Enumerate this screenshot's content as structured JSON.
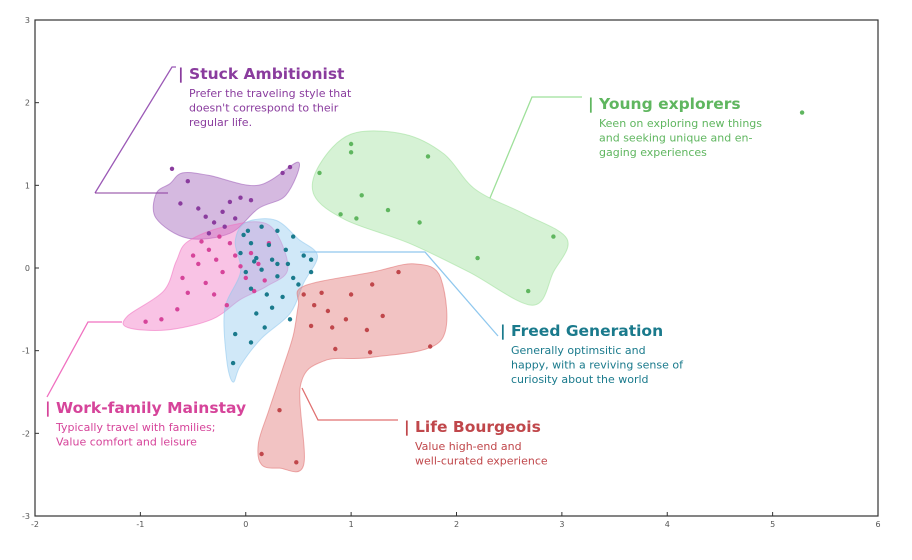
{
  "chart_data": {
    "type": "scatter",
    "title": "",
    "xlabel": "",
    "ylabel": "",
    "xlim": [
      -2,
      6
    ],
    "ylim": [
      -3,
      3
    ],
    "x_ticks": [
      -2,
      -1,
      0,
      1,
      2,
      3,
      4,
      5,
      6
    ],
    "y_ticks": [
      -3,
      -2,
      -1,
      0,
      1,
      2,
      3
    ],
    "x_tick_labels": [
      "-2",
      "-1",
      "0",
      "1",
      "2",
      "3",
      "4",
      "5",
      "6"
    ],
    "y_tick_labels": [
      "-3",
      "-2",
      "-1",
      "0",
      "1",
      "2",
      "3"
    ],
    "grid": false,
    "series": [
      {
        "name": "Stuck Ambitionist",
        "color": "#8a3c9e",
        "fill": "#9b59b6",
        "description": [
          "Prefer the traveling style that",
          "doesn't correspond to their",
          "regular life."
        ],
        "region": [
          [
            -0.72,
            1.02
          ],
          [
            -0.6,
            1.15
          ],
          [
            -0.35,
            1.12
          ],
          [
            0.12,
            1.0
          ],
          [
            0.5,
            1.28
          ],
          [
            0.38,
            0.88
          ],
          [
            0.12,
            0.72
          ],
          [
            -0.15,
            0.42
          ],
          [
            -0.55,
            0.36
          ],
          [
            -0.85,
            0.6
          ],
          [
            -0.85,
            0.9
          ]
        ],
        "points": [
          [
            -0.7,
            1.2
          ],
          [
            -0.55,
            1.05
          ],
          [
            -0.62,
            0.78
          ],
          [
            -0.45,
            0.72
          ],
          [
            -0.38,
            0.62
          ],
          [
            -0.3,
            0.55
          ],
          [
            -0.22,
            0.68
          ],
          [
            -0.15,
            0.8
          ],
          [
            -0.05,
            0.85
          ],
          [
            0.05,
            0.82
          ],
          [
            -0.2,
            0.5
          ],
          [
            -0.35,
            0.42
          ],
          [
            -0.1,
            0.6
          ],
          [
            0.35,
            1.15
          ],
          [
            0.42,
            1.22
          ]
        ]
      },
      {
        "name": "Young explorers",
        "color": "#5fb65f",
        "fill": "#9ee09a",
        "description": [
          "Keen on exploring new things",
          "and seeking unique and en-",
          "gaging experiences"
        ],
        "region": [
          [
            0.7,
            1.25
          ],
          [
            1.0,
            1.62
          ],
          [
            1.5,
            1.62
          ],
          [
            1.88,
            1.38
          ],
          [
            2.18,
            0.95
          ],
          [
            2.65,
            0.65
          ],
          [
            3.05,
            0.35
          ],
          [
            2.92,
            -0.05
          ],
          [
            2.72,
            -0.45
          ],
          [
            2.12,
            -0.05
          ],
          [
            1.55,
            0.3
          ],
          [
            0.95,
            0.58
          ],
          [
            0.65,
            0.88
          ]
        ],
        "points": [
          [
            1.0,
            1.5
          ],
          [
            1.0,
            1.4
          ],
          [
            1.73,
            1.35
          ],
          [
            0.7,
            1.15
          ],
          [
            1.1,
            0.88
          ],
          [
            1.35,
            0.7
          ],
          [
            1.65,
            0.55
          ],
          [
            0.9,
            0.65
          ],
          [
            1.05,
            0.6
          ],
          [
            2.2,
            0.12
          ],
          [
            2.68,
            -0.28
          ],
          [
            2.92,
            0.38
          ],
          [
            5.28,
            1.88
          ]
        ]
      },
      {
        "name": "Work-family Mainstay",
        "color": "#d6449a",
        "fill": "#f070c0",
        "description": [
          "Typically travel with families;",
          "Value comfort and leisure"
        ],
        "region": [
          [
            -0.55,
            0.32
          ],
          [
            -0.2,
            0.5
          ],
          [
            0.22,
            0.52
          ],
          [
            0.4,
            0.0
          ],
          [
            0.2,
            -0.22
          ],
          [
            -0.05,
            -0.38
          ],
          [
            -0.32,
            -0.62
          ],
          [
            -0.75,
            -0.75
          ],
          [
            -1.12,
            -0.72
          ],
          [
            -1.12,
            -0.58
          ],
          [
            -0.78,
            -0.28
          ],
          [
            -0.66,
            0.08
          ]
        ],
        "points": [
          [
            -0.5,
            0.15
          ],
          [
            -0.45,
            0.05
          ],
          [
            -0.35,
            0.22
          ],
          [
            -0.28,
            0.1
          ],
          [
            -0.22,
            -0.05
          ],
          [
            -0.15,
            0.3
          ],
          [
            -0.1,
            0.15
          ],
          [
            -0.05,
            0.02
          ],
          [
            0.0,
            -0.12
          ],
          [
            0.05,
            0.18
          ],
          [
            0.12,
            0.05
          ],
          [
            0.18,
            -0.15
          ],
          [
            -0.38,
            -0.18
          ],
          [
            -0.3,
            -0.32
          ],
          [
            -0.55,
            -0.3
          ],
          [
            -0.65,
            -0.5
          ],
          [
            -0.8,
            -0.62
          ],
          [
            -0.95,
            -0.65
          ],
          [
            -0.18,
            -0.45
          ],
          [
            -0.25,
            0.38
          ],
          [
            -0.42,
            0.32
          ],
          [
            0.22,
            0.3
          ],
          [
            -0.6,
            -0.12
          ],
          [
            0.08,
            -0.28
          ]
        ]
      },
      {
        "name": "Freed Generation",
        "color": "#1a7a8c",
        "fill": "#90c8ee",
        "description": [
          "Generally optimsitic and",
          "happy, with a reviving sense of",
          "curiosity about the world"
        ],
        "region": [
          [
            0.0,
            0.55
          ],
          [
            0.28,
            0.58
          ],
          [
            0.5,
            0.35
          ],
          [
            0.68,
            0.15
          ],
          [
            0.55,
            -0.18
          ],
          [
            0.42,
            -0.55
          ],
          [
            0.15,
            -0.85
          ],
          [
            -0.05,
            -1.18
          ],
          [
            -0.12,
            -1.38
          ],
          [
            -0.18,
            -1.12
          ],
          [
            -0.2,
            -0.5
          ],
          [
            -0.05,
            -0.05
          ],
          [
            -0.1,
            0.32
          ]
        ],
        "points": [
          [
            0.02,
            0.45
          ],
          [
            0.15,
            0.5
          ],
          [
            0.3,
            0.45
          ],
          [
            0.05,
            0.3
          ],
          [
            0.22,
            0.28
          ],
          [
            0.38,
            0.22
          ],
          [
            -0.05,
            0.18
          ],
          [
            0.1,
            0.12
          ],
          [
            0.25,
            0.1
          ],
          [
            0.4,
            0.05
          ],
          [
            0.55,
            0.15
          ],
          [
            0.62,
            0.1
          ],
          [
            0.0,
            -0.05
          ],
          [
            0.15,
            -0.02
          ],
          [
            0.3,
            -0.1
          ],
          [
            0.45,
            -0.12
          ],
          [
            0.05,
            -0.25
          ],
          [
            0.2,
            -0.32
          ],
          [
            0.35,
            -0.35
          ],
          [
            0.5,
            -0.2
          ],
          [
            0.25,
            -0.48
          ],
          [
            0.1,
            -0.55
          ],
          [
            0.42,
            -0.62
          ],
          [
            0.18,
            -0.72
          ],
          [
            -0.1,
            -0.8
          ],
          [
            0.05,
            -0.9
          ],
          [
            -0.12,
            -1.15
          ],
          [
            0.62,
            -0.05
          ],
          [
            0.3,
            0.05
          ],
          [
            0.08,
            0.08
          ],
          [
            -0.02,
            0.4
          ],
          [
            0.45,
            0.38
          ]
        ]
      },
      {
        "name": "Life Bourgeois",
        "color": "#c0474b",
        "fill": "#e07070",
        "description": [
          "Value high-end and",
          "well-curated experience"
        ],
        "region": [
          [
            0.55,
            -0.22
          ],
          [
            1.2,
            -0.05
          ],
          [
            1.6,
            0.05
          ],
          [
            1.85,
            -0.12
          ],
          [
            1.85,
            -0.88
          ],
          [
            1.2,
            -1.08
          ],
          [
            0.75,
            -1.12
          ],
          [
            0.52,
            -1.42
          ],
          [
            0.55,
            -2.38
          ],
          [
            0.32,
            -2.42
          ],
          [
            0.15,
            -2.38
          ],
          [
            0.12,
            -2.12
          ],
          [
            0.22,
            -1.72
          ],
          [
            0.35,
            -1.22
          ],
          [
            0.45,
            -0.82
          ],
          [
            0.5,
            -0.45
          ]
        ],
        "points": [
          [
            0.55,
            -0.32
          ],
          [
            0.72,
            -0.3
          ],
          [
            1.0,
            -0.32
          ],
          [
            1.2,
            -0.2
          ],
          [
            1.45,
            -0.05
          ],
          [
            0.78,
            -0.52
          ],
          [
            0.95,
            -0.62
          ],
          [
            1.3,
            -0.58
          ],
          [
            0.82,
            -0.72
          ],
          [
            1.15,
            -0.75
          ],
          [
            0.85,
            -0.98
          ],
          [
            1.18,
            -1.02
          ],
          [
            1.75,
            -0.95
          ],
          [
            0.62,
            -0.7
          ],
          [
            0.32,
            -1.72
          ],
          [
            0.48,
            -2.35
          ],
          [
            0.15,
            -2.25
          ],
          [
            0.65,
            -0.45
          ]
        ]
      }
    ],
    "annotations": [
      {
        "series": 0,
        "title": "| Stuck Ambitionist"
      },
      {
        "series": 1,
        "title": "| Young explorers"
      },
      {
        "series": 2,
        "title": "| Work-family Mainstay"
      },
      {
        "series": 3,
        "title": "| Freed Generation"
      },
      {
        "series": 4,
        "title": "| Life Bourgeois"
      }
    ]
  }
}
